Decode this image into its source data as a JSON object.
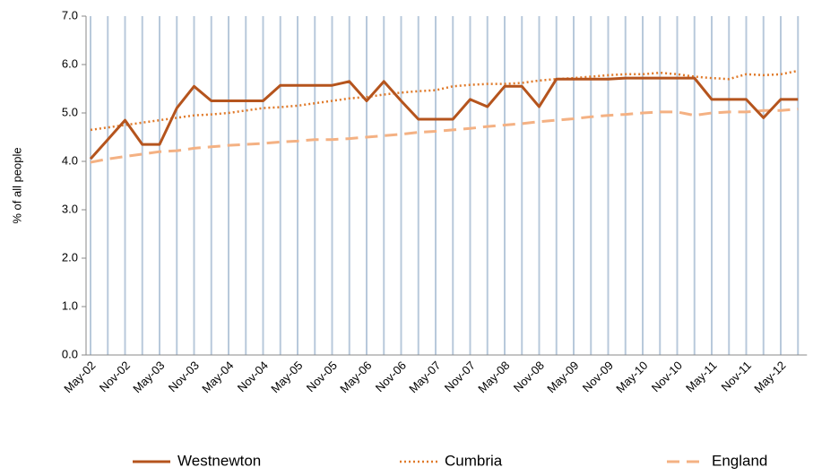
{
  "chart_data": {
    "type": "line",
    "ylabel": "% of all people",
    "categories": [
      "May-02",
      null,
      "Nov-02",
      null,
      "May-03",
      null,
      "Nov-03",
      null,
      "May-04",
      null,
      "Nov-04",
      null,
      "May-05",
      null,
      "Nov-05",
      null,
      "May-06",
      null,
      "Nov-06",
      null,
      "May-07",
      null,
      "Nov-07",
      null,
      "May-08",
      null,
      "Nov-08",
      null,
      "May-09",
      null,
      "Nov-09",
      null,
      "May-10",
      null,
      "Nov-10",
      null,
      "May-11",
      null,
      "Nov-11",
      null,
      "May-12",
      null
    ],
    "series": [
      {
        "name": "Westnewton",
        "color": "#b5541d",
        "style": "solid",
        "values": [
          4.05,
          4.45,
          4.85,
          4.35,
          4.35,
          5.1,
          5.55,
          5.25,
          5.25,
          5.25,
          5.25,
          5.57,
          5.57,
          5.57,
          5.57,
          5.65,
          5.25,
          5.65,
          5.25,
          4.87,
          4.87,
          4.87,
          5.28,
          5.13,
          5.55,
          5.55,
          5.13,
          5.7,
          5.7,
          5.7,
          5.7,
          5.72,
          5.72,
          5.72,
          5.72,
          5.72,
          5.28,
          5.28,
          5.28,
          4.9,
          5.28,
          5.28
        ]
      },
      {
        "name": "Cumbria",
        "color": "#e07a2a",
        "style": "dotted",
        "values": [
          4.65,
          4.7,
          4.75,
          4.8,
          4.85,
          4.9,
          4.95,
          4.97,
          5.0,
          5.05,
          5.1,
          5.12,
          5.15,
          5.2,
          5.25,
          5.3,
          5.33,
          5.38,
          5.42,
          5.45,
          5.47,
          5.55,
          5.58,
          5.6,
          5.6,
          5.62,
          5.67,
          5.7,
          5.72,
          5.75,
          5.78,
          5.8,
          5.8,
          5.83,
          5.8,
          5.75,
          5.72,
          5.7,
          5.8,
          5.78,
          5.8,
          5.87
        ]
      },
      {
        "name": "England",
        "color": "#f4b183",
        "style": "dashed",
        "values": [
          3.98,
          4.05,
          4.1,
          4.15,
          4.2,
          4.22,
          4.27,
          4.3,
          4.33,
          4.35,
          4.37,
          4.4,
          4.42,
          4.45,
          4.45,
          4.47,
          4.5,
          4.53,
          4.56,
          4.6,
          4.62,
          4.65,
          4.68,
          4.72,
          4.75,
          4.78,
          4.82,
          4.85,
          4.88,
          4.92,
          4.95,
          4.97,
          5.0,
          5.02,
          5.02,
          4.95,
          5.0,
          5.02,
          5.02,
          5.05,
          5.05,
          5.08
        ]
      }
    ],
    "ylim": [
      0,
      7
    ],
    "yticks": [
      {
        "value": 0,
        "label": "0.0"
      },
      {
        "value": 1,
        "label": "1.0"
      },
      {
        "value": 2,
        "label": "2.0"
      },
      {
        "value": 3,
        "label": "3.0"
      },
      {
        "value": 4,
        "label": "4.0"
      },
      {
        "value": 5,
        "label": "5.0"
      },
      {
        "value": 6,
        "label": "6.0"
      },
      {
        "value": 7,
        "label": "7.0"
      }
    ],
    "grid": "x",
    "legend": "bottom"
  }
}
